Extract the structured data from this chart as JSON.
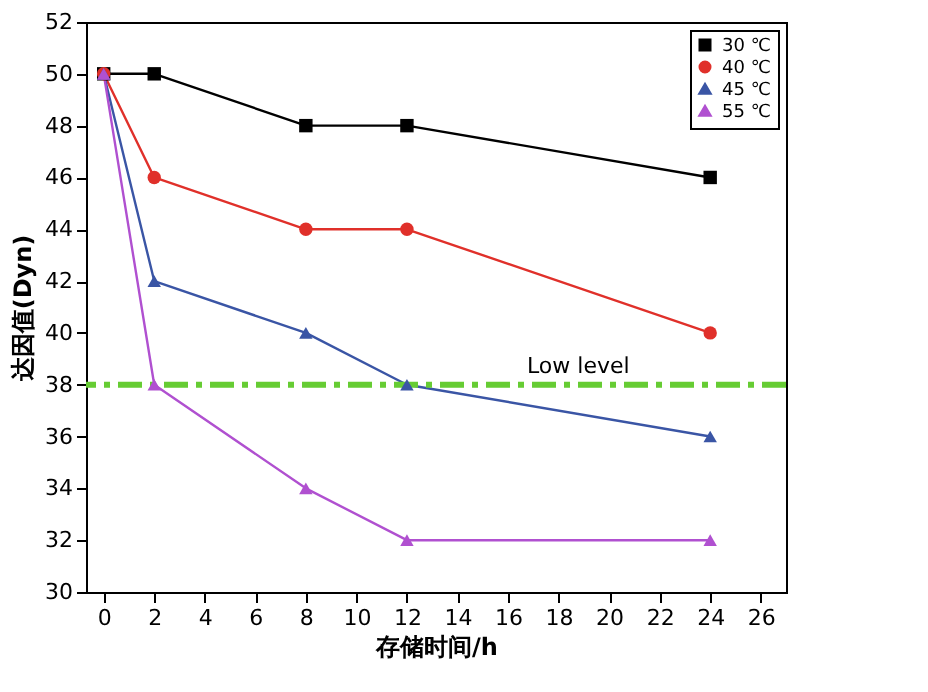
{
  "chart_data": {
    "type": "line",
    "xlabel": "存储时间/h",
    "ylabel": "达因值(Dyn)",
    "x": [
      0,
      2,
      8,
      12,
      24
    ],
    "series": [
      {
        "name": "30 ℃",
        "color": "#000000",
        "marker": "square",
        "values": [
          50,
          50,
          48,
          48,
          46
        ]
      },
      {
        "name": "40 ℃",
        "color": "#e0302a",
        "marker": "circle",
        "values": [
          50,
          46,
          44,
          44,
          40
        ]
      },
      {
        "name": "45 ℃",
        "color": "#3a55a5",
        "marker": "triangle",
        "values": [
          50,
          42,
          40,
          38,
          36
        ]
      },
      {
        "name": "55 ℃",
        "color": "#b050d0",
        "marker": "triangle",
        "values": [
          50,
          38,
          34,
          32,
          32
        ]
      }
    ],
    "xlim": [
      -0.7,
      27
    ],
    "xticks": [
      0,
      2,
      4,
      6,
      8,
      10,
      12,
      14,
      16,
      18,
      20,
      22,
      24,
      26
    ],
    "ylim": [
      30,
      52
    ],
    "yticks": [
      30,
      32,
      34,
      36,
      38,
      40,
      42,
      44,
      46,
      48,
      50,
      52
    ],
    "ref_lines": [
      {
        "axis": "y",
        "value": 38,
        "label": "Low level",
        "color": "#66cc33",
        "line_style": "dashdot"
      }
    ],
    "legend": "top right",
    "grid": false,
    "line_style": "solid"
  }
}
